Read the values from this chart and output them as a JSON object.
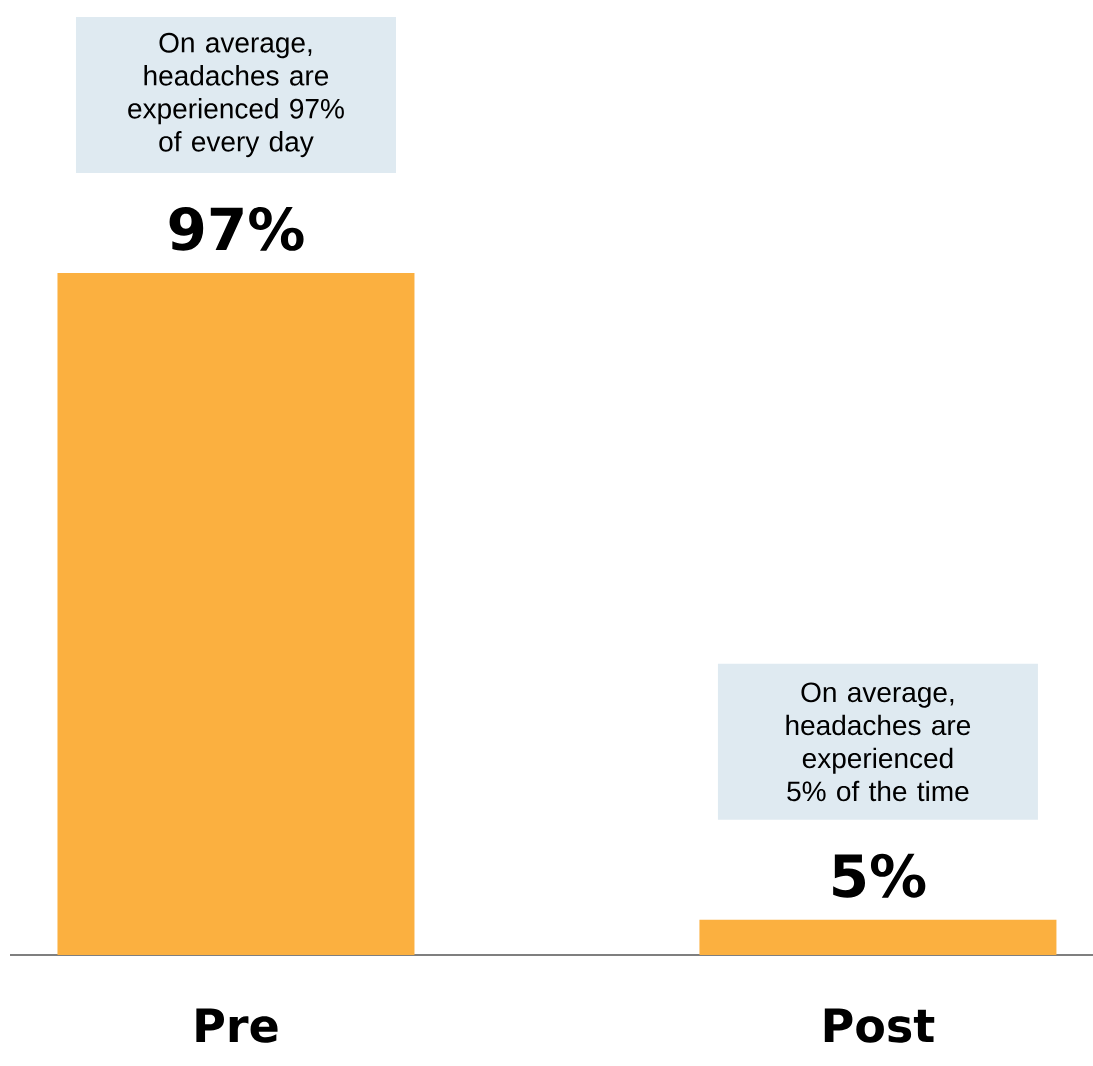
{
  "chart_data": {
    "type": "bar",
    "categories": [
      "Pre",
      "Post"
    ],
    "values": [
      97,
      5
    ],
    "color": "#fbb040",
    "value_labels": [
      "97%",
      "5%"
    ],
    "annotations": [
      "On average, headaches are experienced 97% of every day",
      "On average, headaches are experienced 5% of the time"
    ]
  }
}
